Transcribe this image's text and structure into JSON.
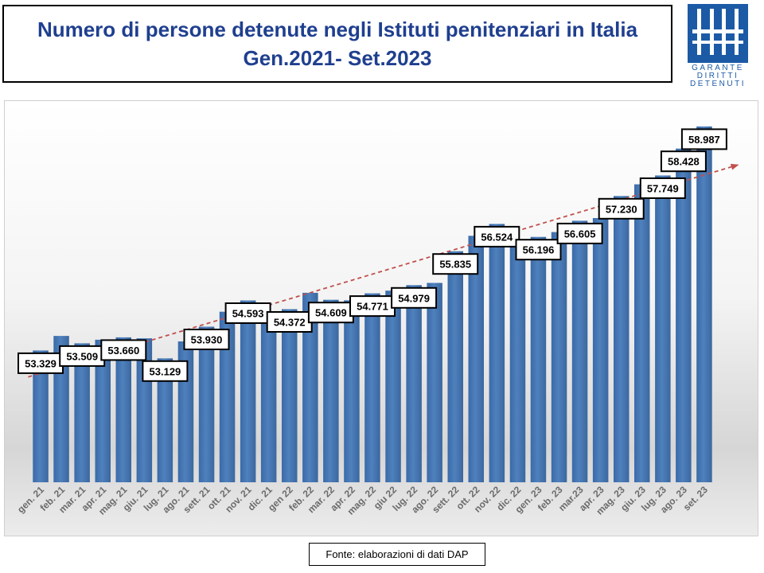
{
  "header": {
    "title_line1": "Numero di persone detenute negli Istituti penitenziari in Italia",
    "title_line2": "Gen.2021- Set.2023"
  },
  "logo": {
    "lines": [
      "GARANTE",
      "DIRITTI",
      "DETENUTI"
    ],
    "color": "#1c5aa6"
  },
  "footer": {
    "source": "Fonte: elaborazioni di dati DAP"
  },
  "chart_data": {
    "type": "bar",
    "title": "Numero di persone detenute negli Istituti penitenziari in Italia Gen.2021- Set.2023",
    "xlabel": "",
    "ylabel": "",
    "ylim": [
      50000,
      60000
    ],
    "grid": false,
    "legend": "none",
    "bar_color": "#4f81bd",
    "trendline": {
      "type": "linear",
      "style": "dashed",
      "color": "#c0504d"
    },
    "categories": [
      "gen. 21",
      "feb. 21",
      "mar. 21",
      "apr. 21",
      "mag. 21",
      "giu. 21",
      "lug. 21",
      "ago. 21",
      "sett. 21",
      "ott. 21",
      "nov. 21",
      "dic. 21",
      "gen 22",
      "feb. 22",
      "mar. 22",
      "apr. 22",
      "mag. 22",
      "giu 22",
      "lug. 22",
      "ago. 22",
      "sett. 22",
      "ott. 22",
      "nov. 22",
      "dic. 22",
      "gen. 23",
      "feb. 23",
      "mar.23",
      "apr. 23",
      "mag. 23",
      "giu. 23",
      "lug. 23",
      "ago. 23",
      "set. 23"
    ],
    "values": [
      53329,
      53697,
      53509,
      53600,
      53660,
      53637,
      53129,
      53557,
      53930,
      54307,
      54593,
      54134,
      54372,
      54786,
      54609,
      54595,
      54771,
      54841,
      54979,
      55036,
      55835,
      56225,
      56524,
      56127,
      56196,
      56319,
      56605,
      56674,
      57230,
      57525,
      57749,
      58428,
      58987
    ],
    "data_labels": [
      {
        "index": 0,
        "text": "53.329"
      },
      {
        "index": 2,
        "text": "53.509"
      },
      {
        "index": 4,
        "text": "53.660"
      },
      {
        "index": 6,
        "text": "53.129"
      },
      {
        "index": 8,
        "text": "53.930"
      },
      {
        "index": 10,
        "text": "54.593"
      },
      {
        "index": 12,
        "text": "54.372"
      },
      {
        "index": 14,
        "text": "54.609"
      },
      {
        "index": 16,
        "text": "54.771"
      },
      {
        "index": 18,
        "text": "54.979"
      },
      {
        "index": 20,
        "text": "55.835"
      },
      {
        "index": 22,
        "text": "56.524"
      },
      {
        "index": 24,
        "text": "56.196"
      },
      {
        "index": 26,
        "text": "56.605"
      },
      {
        "index": 28,
        "text": "57.230"
      },
      {
        "index": 30,
        "text": "57.749"
      },
      {
        "index": 31,
        "text": "58.428"
      },
      {
        "index": 32,
        "text": "58.987"
      }
    ]
  }
}
